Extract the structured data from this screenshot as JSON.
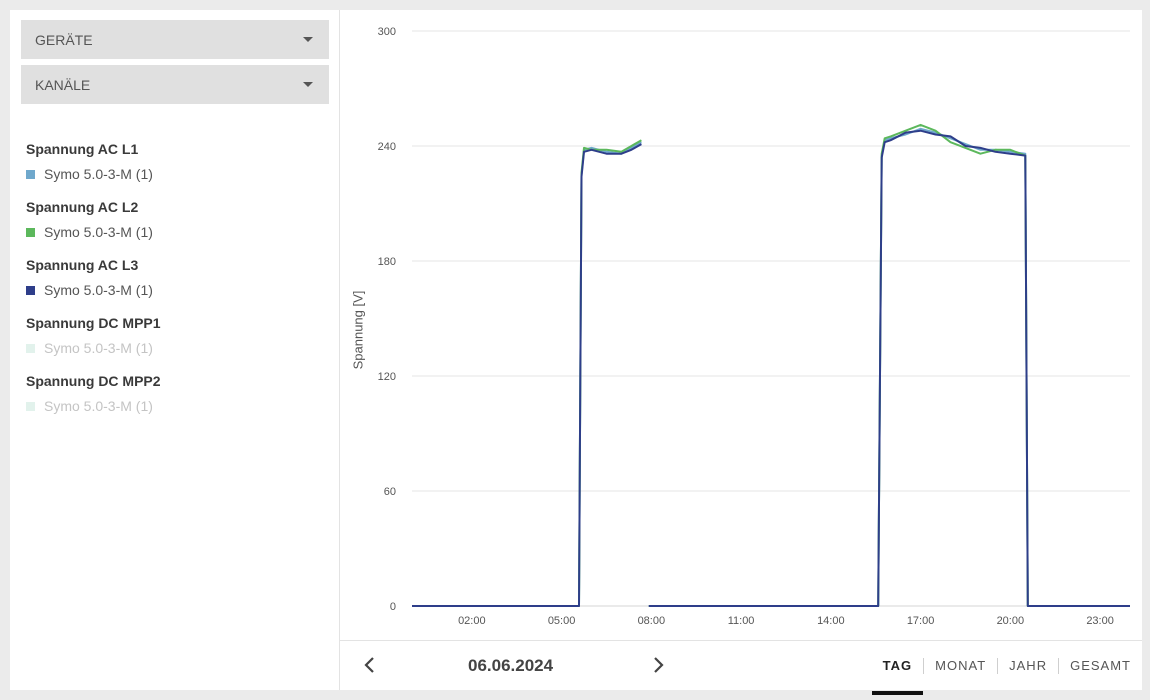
{
  "sidebar": {
    "devices_dropdown": "GERÄTE",
    "channels_dropdown": "KANÄLE",
    "channels": [
      {
        "title": "Spannung AC L1",
        "device": "Symo 5.0-3-M (1)",
        "color": "#6fa8cc",
        "active": true
      },
      {
        "title": "Spannung AC L2",
        "device": "Symo 5.0-3-M (1)",
        "color": "#5cb85c",
        "active": true
      },
      {
        "title": "Spannung AC L3",
        "device": "Symo 5.0-3-M (1)",
        "color": "#2e3e8a",
        "active": true
      },
      {
        "title": "Spannung DC MPP1",
        "device": "Symo 5.0-3-M (1)",
        "color": "#e2f2ec",
        "active": false
      },
      {
        "title": "Spannung DC MPP2",
        "device": "Symo 5.0-3-M (1)",
        "color": "#e2f2ec",
        "active": false
      }
    ]
  },
  "footer": {
    "date": "06.06.2024",
    "prev_icon": "chevron-left-icon",
    "next_icon": "chevron-right-icon",
    "periods": [
      "TAG",
      "MONAT",
      "JAHR",
      "GESAMT"
    ],
    "active_period": "TAG"
  },
  "chart_data": {
    "type": "line",
    "ylabel": "Spannung [V]",
    "ylim": [
      0,
      300
    ],
    "yticks": [
      0,
      60,
      120,
      180,
      240,
      300
    ],
    "xlim": [
      "00:00",
      "24:00"
    ],
    "xticks": [
      "02:00",
      "05:00",
      "08:00",
      "11:00",
      "14:00",
      "17:00",
      "20:00",
      "23:00"
    ],
    "grid": true,
    "series": [
      {
        "name": "Spannung AC L1",
        "color": "#6fa8cc",
        "segments": [
          [
            [
              "00:00",
              0
            ],
            [
              "05:35",
              0
            ],
            [
              "05:40",
              225
            ],
            [
              "05:45",
              238
            ],
            [
              "06:00",
              239
            ],
            [
              "06:30",
              237
            ],
            [
              "07:00",
              236
            ],
            [
              "07:20",
              239
            ],
            [
              "07:40",
              242
            ]
          ],
          [
            [
              "07:55",
              0
            ],
            [
              "15:35",
              0
            ],
            [
              "15:42",
              235
            ],
            [
              "15:48",
              243
            ],
            [
              "16:00",
              244
            ],
            [
              "16:30",
              246
            ],
            [
              "17:00",
              249
            ],
            [
              "17:30",
              247
            ],
            [
              "18:00",
              244
            ],
            [
              "18:30",
              241
            ],
            [
              "19:00",
              238
            ],
            [
              "19:30",
              238
            ],
            [
              "20:00",
              237
            ],
            [
              "20:30",
              236
            ],
            [
              "20:35",
              0
            ],
            [
              "24:00",
              0
            ]
          ]
        ]
      },
      {
        "name": "Spannung AC L2",
        "color": "#5cb85c",
        "segments": [
          [
            [
              "00:00",
              0
            ],
            [
              "05:35",
              0
            ],
            [
              "05:40",
              226
            ],
            [
              "05:45",
              239
            ],
            [
              "06:00",
              238
            ],
            [
              "06:30",
              238
            ],
            [
              "07:00",
              237
            ],
            [
              "07:20",
              240
            ],
            [
              "07:40",
              243
            ]
          ],
          [
            [
              "07:55",
              0
            ],
            [
              "15:35",
              0
            ],
            [
              "15:42",
              236
            ],
            [
              "15:48",
              244
            ],
            [
              "16:00",
              245
            ],
            [
              "16:30",
              248
            ],
            [
              "17:00",
              251
            ],
            [
              "17:30",
              248
            ],
            [
              "18:00",
              242
            ],
            [
              "18:30",
              239
            ],
            [
              "19:00",
              236
            ],
            [
              "19:30",
              238
            ],
            [
              "20:00",
              238
            ],
            [
              "20:30",
              235
            ],
            [
              "20:35",
              0
            ],
            [
              "24:00",
              0
            ]
          ]
        ]
      },
      {
        "name": "Spannung AC L3",
        "color": "#2e3e8a",
        "segments": [
          [
            [
              "00:00",
              0
            ],
            [
              "05:35",
              0
            ],
            [
              "05:40",
              224
            ],
            [
              "05:45",
              237
            ],
            [
              "06:00",
              238
            ],
            [
              "06:30",
              236
            ],
            [
              "07:00",
              236
            ],
            [
              "07:20",
              238
            ],
            [
              "07:40",
              241
            ]
          ],
          [
            [
              "07:55",
              0
            ],
            [
              "15:35",
              0
            ],
            [
              "15:42",
              234
            ],
            [
              "15:48",
              242
            ],
            [
              "16:00",
              243
            ],
            [
              "16:30",
              247
            ],
            [
              "17:00",
              248
            ],
            [
              "17:30",
              246
            ],
            [
              "18:00",
              245
            ],
            [
              "18:30",
              240
            ],
            [
              "19:00",
              239
            ],
            [
              "19:30",
              237
            ],
            [
              "20:00",
              236
            ],
            [
              "20:30",
              235
            ],
            [
              "20:35",
              0
            ],
            [
              "24:00",
              0
            ]
          ]
        ]
      }
    ]
  }
}
